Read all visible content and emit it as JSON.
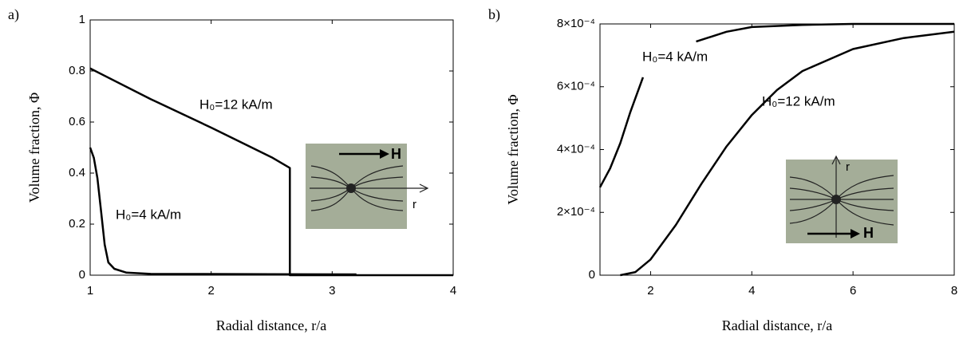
{
  "chart_data": [
    {
      "type": "line",
      "panel_label": "a)",
      "x_label": "Radial distance, r/a",
      "y_label": "Volume fraction, Φ",
      "xlim": [
        1,
        4
      ],
      "ylim": [
        0,
        1
      ],
      "xticks": [
        1,
        2,
        3,
        4
      ],
      "yticks": [
        0,
        0.2,
        0.4,
        0.6,
        0.8,
        1
      ],
      "inset_labels": [
        "H",
        "r"
      ],
      "series": [
        {
          "name": "H₀=12 kA/m",
          "color": "#000000",
          "x": [
            1,
            1.5,
            2,
            2.5,
            2.65,
            2.65,
            2.7,
            4
          ],
          "values": [
            0.81,
            0.69,
            0.578,
            0.462,
            0.42,
            0,
            0,
            0
          ]
        },
        {
          "name": "H₀=4 kA/m",
          "color": "#000000",
          "x": [
            1,
            1.03,
            1.06,
            1.09,
            1.12,
            1.15,
            1.2,
            1.3,
            1.5,
            3.2
          ],
          "values": [
            0.5,
            0.46,
            0.38,
            0.25,
            0.12,
            0.05,
            0.025,
            0.01,
            0.005,
            0.003
          ]
        }
      ]
    },
    {
      "type": "line",
      "panel_label": "b)",
      "x_label": "Radial distance, r/a",
      "y_label": "Volume fraction, Φ",
      "xlim": [
        1,
        8
      ],
      "ylim": [
        0,
        0.0008
      ],
      "xticks": [
        2,
        4,
        6,
        8
      ],
      "yticks": [
        0,
        {
          "value": 0.0002,
          "label": "2×10⁻⁴"
        },
        {
          "value": 0.0004,
          "label": "4×10⁻⁴"
        },
        {
          "value": 0.0006,
          "label": "6×10⁻⁴"
        },
        {
          "value": 0.0008,
          "label": "8×10⁻⁴"
        }
      ],
      "inset_labels": [
        "r",
        "H"
      ],
      "series": [
        {
          "name": "H₀=4 kA/m",
          "color": "#000000",
          "x": [
            1,
            1.2,
            1.4,
            1.6,
            1.85,
            2.4,
            2.9,
            3.5,
            4,
            5,
            6,
            7,
            8
          ],
          "values": [
            0.00028,
            0.00034,
            0.00042,
            0.00052,
            0.00063,
            null,
            0.000744,
            0.000775,
            0.00079,
            0.000797,
            0.0008,
            0.0008,
            0.0008
          ]
        },
        {
          "name": "H₀=12 kA/m",
          "color": "#000000",
          "x": [
            1.4,
            1.7,
            2,
            2.5,
            3,
            3.5,
            4,
            4.5,
            5,
            6,
            7,
            8
          ],
          "values": [
            0,
            1e-05,
            5e-05,
            0.00016,
            0.00029,
            0.00041,
            0.00051,
            0.00059,
            0.00065,
            0.00072,
            0.000755,
            0.000775
          ]
        }
      ]
    }
  ]
}
